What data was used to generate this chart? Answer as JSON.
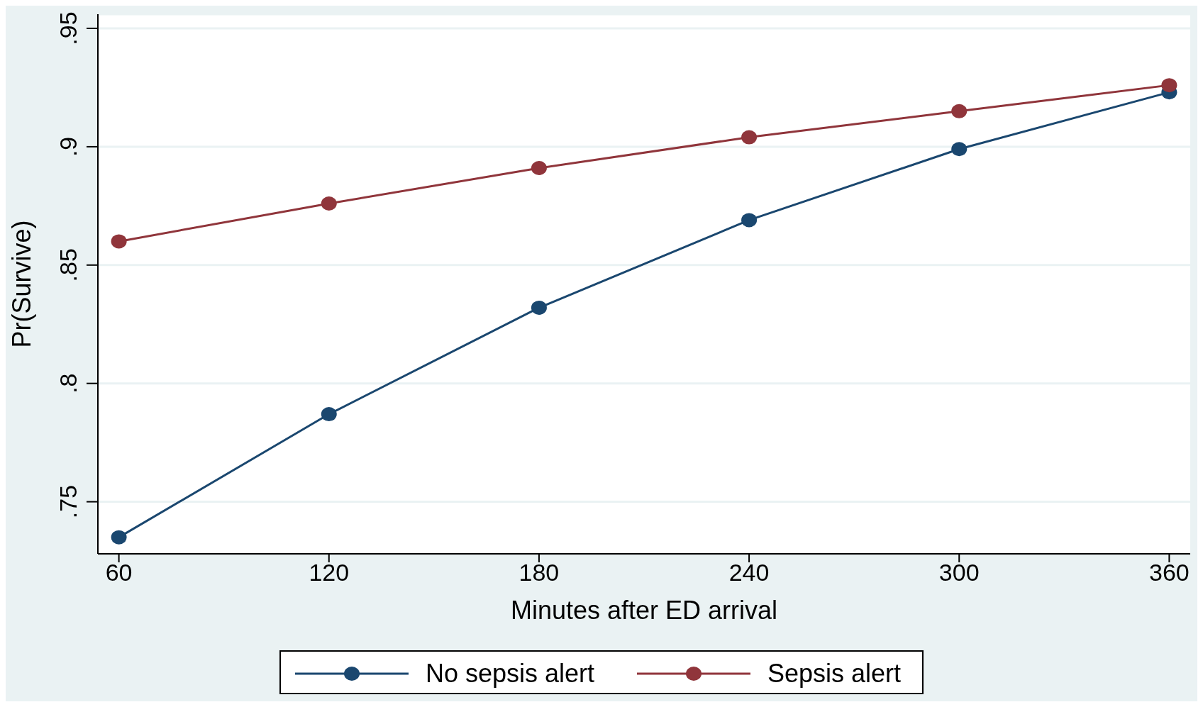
{
  "chart_data": {
    "type": "line",
    "xlabel": "Minutes after ED  arrival",
    "ylabel": "Pr(Survive)",
    "x": [
      60,
      120,
      180,
      240,
      300,
      360
    ],
    "series": [
      {
        "name": "No sepsis alert",
        "color": "#1a476f",
        "values": [
          0.735,
          0.787,
          0.832,
          0.869,
          0.899,
          0.923
        ]
      },
      {
        "name": "Sepsis alert",
        "color": "#90353b",
        "values": [
          0.86,
          0.876,
          0.891,
          0.904,
          0.915,
          0.926
        ]
      }
    ],
    "xlim": [
      54,
      366
    ],
    "xticks": [
      60,
      120,
      180,
      240,
      300,
      360
    ],
    "ylim": [
      0.728,
      0.956
    ],
    "yticks": [
      {
        "value": 0.75,
        "label": ".75"
      },
      {
        "value": 0.8,
        "label": ".8"
      },
      {
        "value": 0.85,
        "label": ".85"
      },
      {
        "value": 0.9,
        "label": ".9"
      },
      {
        "value": 0.95,
        "label": ".95"
      }
    ],
    "grid": "y",
    "legend": "bottom",
    "marker": "circle",
    "line_style": "solid"
  }
}
